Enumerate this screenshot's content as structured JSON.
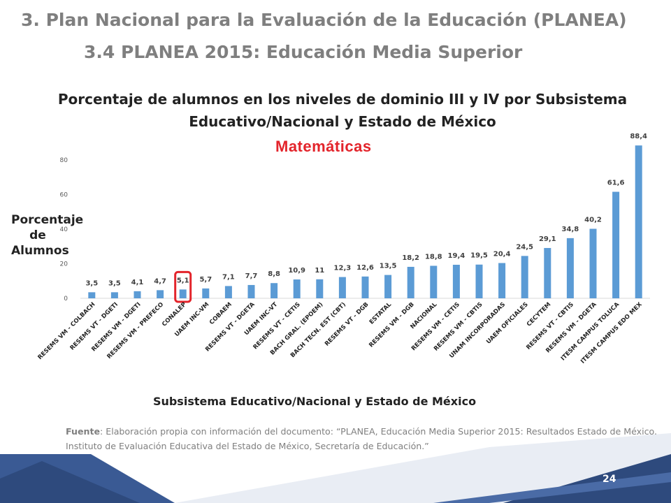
{
  "header": {
    "title": "3. Plan Nacional para la Evaluación de la Educación (PLANEA)",
    "subtitle": "3.4 PLANEA 2015: Educación Media Superior"
  },
  "chart_data": {
    "type": "bar",
    "title_line1": "Porcentaje de alumnos en los niveles de dominio III y IV por Subsistema",
    "title_line2": "Educativo/Nacional y Estado de México",
    "subject": "Matemáticas",
    "ylabel": "Porcentaje de Alumnos",
    "xlabel": "Subsistema Educativo/Nacional y Estado de México",
    "ylim": [
      0,
      90
    ],
    "yticks": [
      "0",
      "20",
      "40",
      "60",
      "80"
    ],
    "grid": false,
    "bar_color": "#5b9bd5",
    "highlight_color": "#e3242b",
    "highlight_category": "CONALEP",
    "categories": [
      "RESEMS VM - COLBACH",
      "RESEMS VT - DGETI",
      "RESEMS VM - DGETI",
      "RESEMS VM - PREFECO",
      "CONALEP",
      "UAEM INC-VM",
      "COBAEM",
      "RESEMS VT - DGETA",
      "UAEM INC-VT",
      "RESEMS VT - CETIS",
      "BACH GRAL. (EPOEM)",
      "BACH TECN. EST (CBT)",
      "RESEMS VT - DGB",
      "ESTATAL",
      "RESEMS VM - DGB",
      "NACIONAL",
      "RESEMS VM - CETIS",
      "RESEMS VM - CBTIS",
      "UNAM INCORPORADAS",
      "UAEM OFICIALES",
      "CECYTEM",
      "RESEMS VT - CBTIS",
      "RESEMS VM - DGETA",
      "ITESM CAMPUS TOLUCA",
      "ITESM CAMPUS EDO MEX"
    ],
    "values": [
      3.5,
      3.5,
      4.1,
      4.7,
      5.1,
      5.7,
      7.1,
      7.7,
      8.8,
      10.9,
      11,
      12.3,
      12.6,
      13.5,
      18.2,
      18.8,
      19.4,
      19.5,
      20.4,
      24.5,
      29.1,
      34.8,
      40.2,
      61.6,
      88.4
    ],
    "value_labels": [
      "3,5",
      "3,5",
      "4,1",
      "4,7",
      "5,1",
      "5,7",
      "7,1",
      "7,7",
      "8,8",
      "10,9",
      "11",
      "12,3",
      "12,6",
      "13,5",
      "18,2",
      "18,8",
      "19,4",
      "19,5",
      "20,4",
      "24,5",
      "29,1",
      "34,8",
      "40,2",
      "61,6",
      "88,4"
    ]
  },
  "source": {
    "label": "Fuente",
    "text": ": Elaboración propia con información del documento: “PLANEA, Educación Media Superior 2015: Resultados Estado de México. Instituto de Evaluación Educativa del Estado de México, Secretaría de Educación.”"
  },
  "footer": {
    "page_number": "24",
    "band_color": "#2e4a7d"
  }
}
